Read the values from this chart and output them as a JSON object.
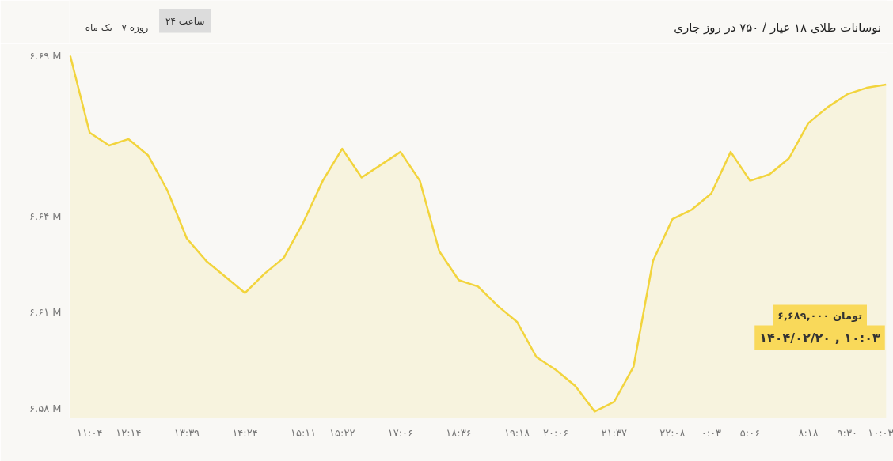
{
  "chart_data": {
    "type": "area",
    "title": "نوسانات طلای ۱۸ عیار / ۷۵۰ در روز جاری",
    "categories": [
      null,
      "۱۱:۰۴",
      null,
      "۱۲:۱۴",
      null,
      null,
      "۱۳:۳۹",
      null,
      null,
      "۱۴:۲۴",
      null,
      null,
      "۱۵:۱۱",
      null,
      "۱۵:۲۲",
      null,
      null,
      "۱۷:۰۶",
      null,
      null,
      "۱۸:۳۶",
      null,
      null,
      "۱۹:۱۸",
      null,
      "۲۰:۰۶",
      null,
      null,
      "۲۱:۳۷",
      null,
      null,
      "۲۲:۰۸",
      null,
      "۰:۰۳",
      null,
      "۵:۰۶",
      null,
      null,
      "۸:۱۸",
      null,
      "۹:۳۰",
      null,
      "۱۰:۰۳"
    ],
    "series": [
      {
        "color": "#f2d43d",
        "values": [
          6.69,
          6.666,
          6.662,
          6.664,
          6.659,
          6.648,
          6.633,
          6.626,
          6.621,
          6.616,
          6.622,
          6.627,
          6.638,
          6.651,
          6.661,
          6.652,
          6.656,
          6.66,
          6.651,
          6.629,
          6.62,
          6.618,
          6.612,
          6.607,
          6.596,
          6.592,
          6.587,
          6.579,
          6.582,
          6.593,
          6.626,
          6.639,
          6.642,
          6.647,
          6.66,
          6.651,
          6.653,
          6.658,
          6.669,
          6.674,
          6.678,
          6.68,
          6.681
        ]
      }
    ],
    "ylim": [
      6.577,
      6.691
    ],
    "yticks": [
      {
        "value": 6.69,
        "label": "۶.۶۹ M"
      },
      {
        "value": 6.64,
        "label": "۶.۶۴ M"
      },
      {
        "value": 6.61,
        "label": "۶.۶۱ M"
      },
      {
        "value": 6.58,
        "label": "۶.۵۸ M"
      }
    ],
    "grid": false,
    "annotations": [
      "یک ماه",
      "۷ روزه",
      "۲۴ ساعت",
      "۶,۶۸۹,۰۰۰ تومان",
      "۱۴۰۴/۰۲/۲۰ , ۱۰:۰۳"
    ]
  }
}
